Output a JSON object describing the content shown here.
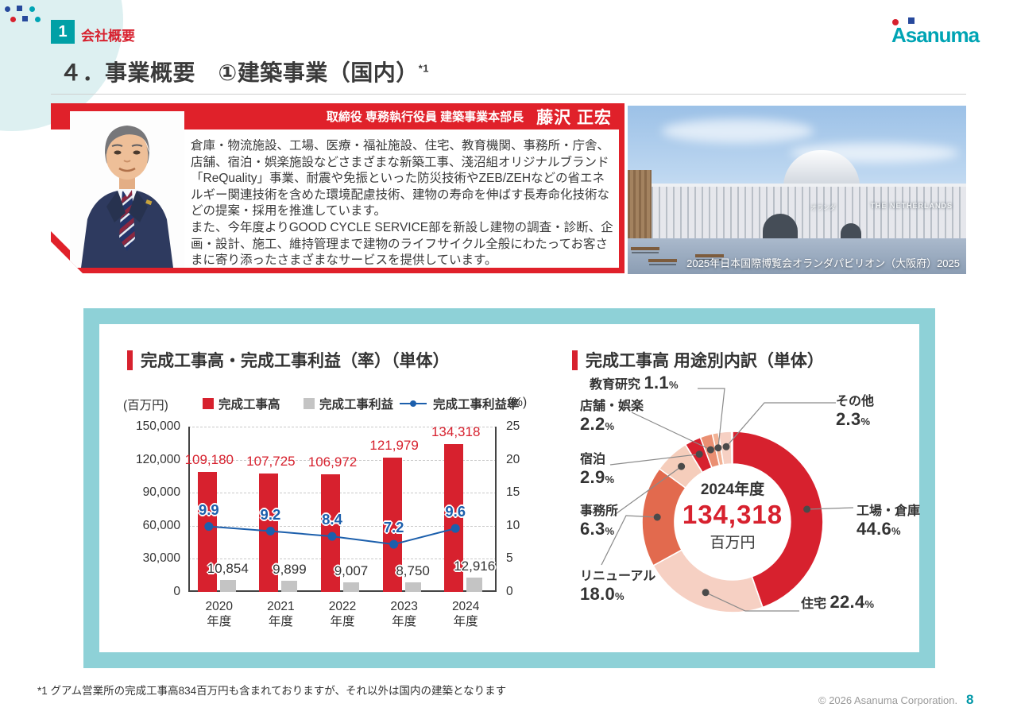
{
  "page": {
    "section_number": "1",
    "section_label": "会社概要",
    "title": "４．事業概要　①建築事業（国内）",
    "title_footnote": "*1",
    "logo_text": "Asanuma",
    "footnote": "*1 グアム営業所の完成工事高834百万円も含まれておりますが、それ以外は国内の建築となります",
    "copyright": "© 2026 Asanuma Corporation.",
    "page_number": "8"
  },
  "executive": {
    "role": "取締役 専務執行役員 建築事業本部長",
    "name": "藤沢 正宏",
    "description": "倉庫・物流施設、工場、医療・福祉施設、住宅、教育機関、事務所・庁舎、店舗、宿泊・娯楽施設などさまざまな新築工事、淺沼組オリジナルブランド「ReQuality」事業、耐震や免振といった防災技術やZEB/ZEHなどの省エネルギー関連技術を含めた環境配慮技術、建物の寿命を伸ばす長寿命化技術などの提案・採用を推進しています。\nまた、今年度よりGOOD CYCLE SERVICE部を新設し建物の調査・診断、企画・設計、施工、維持管理まで建物のライフサイクル全般にわたってお客さまに寄り添ったさまざまなサービスを提供しています。"
  },
  "building_photo": {
    "sign": "THE NETHERLANDS",
    "sign2": "オランダ",
    "caption": "2025年日本国際博覧会オランダパビリオン（大阪府）2025"
  },
  "chart_data": [
    {
      "type": "bar+line",
      "title": "完成工事高・完成工事利益（率）（単体）",
      "unit_left": "(百万円)",
      "unit_right": "(%)",
      "categories": [
        "2020",
        "2021",
        "2022",
        "2023",
        "2024"
      ],
      "category_suffix": "年度",
      "left_ylim": [
        0,
        150000
      ],
      "left_ticks": [
        0,
        30000,
        60000,
        90000,
        120000,
        150000
      ],
      "left_tick_labels": [
        "0",
        "30,000",
        "60,000",
        "90,000",
        "120,000",
        "150,000"
      ],
      "right_ylim": [
        0,
        25
      ],
      "right_ticks": [
        0,
        5,
        10,
        15,
        20,
        25
      ],
      "right_tick_labels": [
        "0",
        "5",
        "10",
        "15",
        "20",
        "25"
      ],
      "grid": "dashed-horizontal",
      "legend_position": "top",
      "series": [
        {
          "name": "完成工事高",
          "type": "bar",
          "color": "#d7212e",
          "values": [
            109180,
            107725,
            106972,
            121979,
            134318
          ],
          "labels": [
            "109,180",
            "107,725",
            "106,972",
            "121,979",
            "134,318"
          ]
        },
        {
          "name": "完成工事利益",
          "type": "bar",
          "color": "#c4c4c4",
          "values": [
            10854,
            9899,
            9007,
            8750,
            12916
          ],
          "labels": [
            "10,854",
            "9,899",
            "9,007",
            "8,750",
            "12,916"
          ]
        },
        {
          "name": "完成工事利益率",
          "type": "line",
          "color": "#1c5fac",
          "values": [
            9.9,
            9.2,
            8.4,
            7.2,
            9.6
          ],
          "labels": [
            "9.9",
            "9.2",
            "8.4",
            "7.2",
            "9.6"
          ]
        }
      ]
    },
    {
      "type": "donut",
      "title": "完成工事高 用途別内訳（単体）",
      "center": {
        "year": "2024年度",
        "value": "134,318",
        "unit": "百万円"
      },
      "segments": [
        {
          "name": "工場・倉庫",
          "pct": 44.6,
          "label": "44.6",
          "color": "#d7212e"
        },
        {
          "name": "住宅",
          "pct": 22.4,
          "label": "22.4",
          "color": "#f6d0c3"
        },
        {
          "name": "リニューアル",
          "pct": 18.0,
          "label": "18.0",
          "color": "#e26a4e"
        },
        {
          "name": "事務所",
          "pct": 6.3,
          "label": "6.3",
          "color": "#f5cdbb"
        },
        {
          "name": "宿泊",
          "pct": 2.9,
          "label": "2.9",
          "color": "#d7212e"
        },
        {
          "name": "店舗・娯楽",
          "pct": 2.2,
          "label": "2.2",
          "color": "#ea8f72"
        },
        {
          "name": "教育研究",
          "pct": 1.1,
          "label": "1.1",
          "color": "#f2b295"
        },
        {
          "name": "その他",
          "pct": 2.3,
          "label": "2.3",
          "color": "#f6d0c3"
        }
      ]
    }
  ]
}
